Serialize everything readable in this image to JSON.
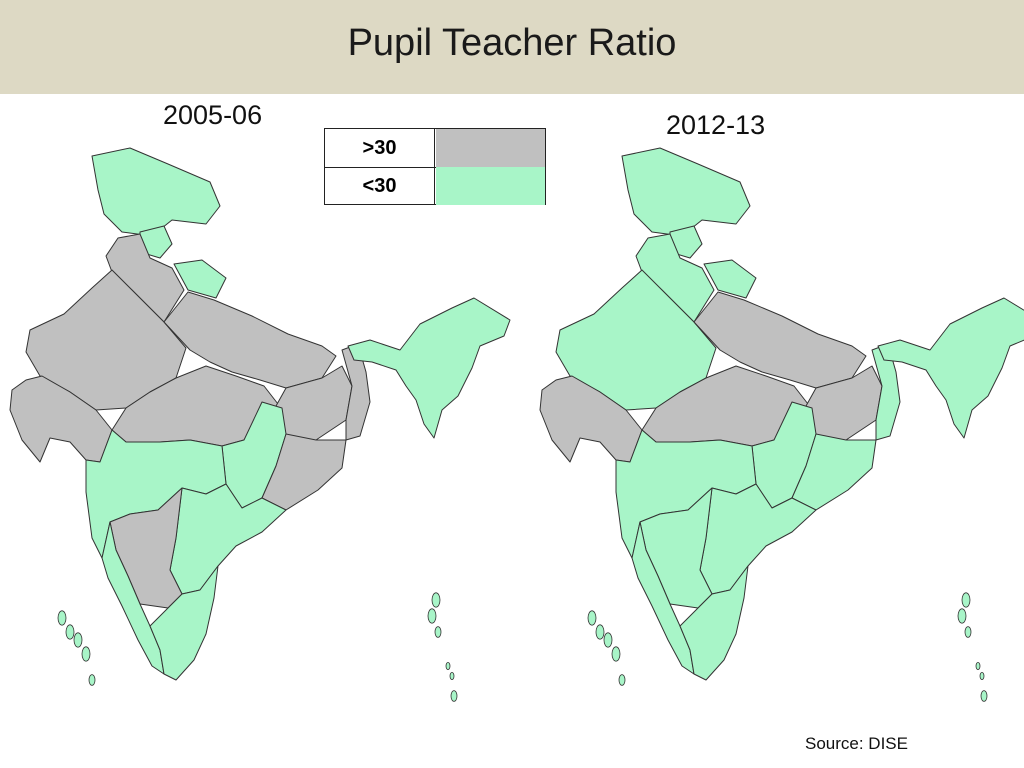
{
  "title": "Pupil Teacher Ratio",
  "legend": [
    {
      "label": ">30",
      "color": "#c0c0c0"
    },
    {
      "label": "<30",
      "color": "#a8f5c8"
    }
  ],
  "maps": [
    {
      "year": "2005-06",
      "state_colors": {
        "jammu_kashmir": "<30",
        "himachal": "<30",
        "uttarakhand": "<30",
        "punjab_haryana": ">30",
        "rajasthan": ">30",
        "gujarat": ">30",
        "uttar_pradesh": ">30",
        "madhya_pradesh": ">30",
        "bihar_jharkhand": ">30",
        "west_bengal": ">30",
        "chhattisgarh": "<30",
        "odisha": ">30",
        "maharashtra": "<30",
        "andhra": "<30",
        "karnataka": ">30",
        "goa_kerala": "<30",
        "tamil_nadu": "<30",
        "northeast": "<30",
        "islands": "<30"
      }
    },
    {
      "year": "2012-13",
      "state_colors": {
        "jammu_kashmir": "<30",
        "himachal": "<30",
        "uttarakhand": "<30",
        "punjab_haryana": "<30",
        "rajasthan": "<30",
        "gujarat": ">30",
        "uttar_pradesh": ">30",
        "madhya_pradesh": ">30",
        "bihar_jharkhand": ">30",
        "west_bengal": "<30",
        "chhattisgarh": "<30",
        "odisha": "<30",
        "maharashtra": "<30",
        "andhra": "<30",
        "karnataka": "<30",
        "goa_kerala": "<30",
        "tamil_nadu": "<30",
        "northeast": "<30",
        "islands": "<30"
      }
    }
  ],
  "source": "Source: DISE"
}
